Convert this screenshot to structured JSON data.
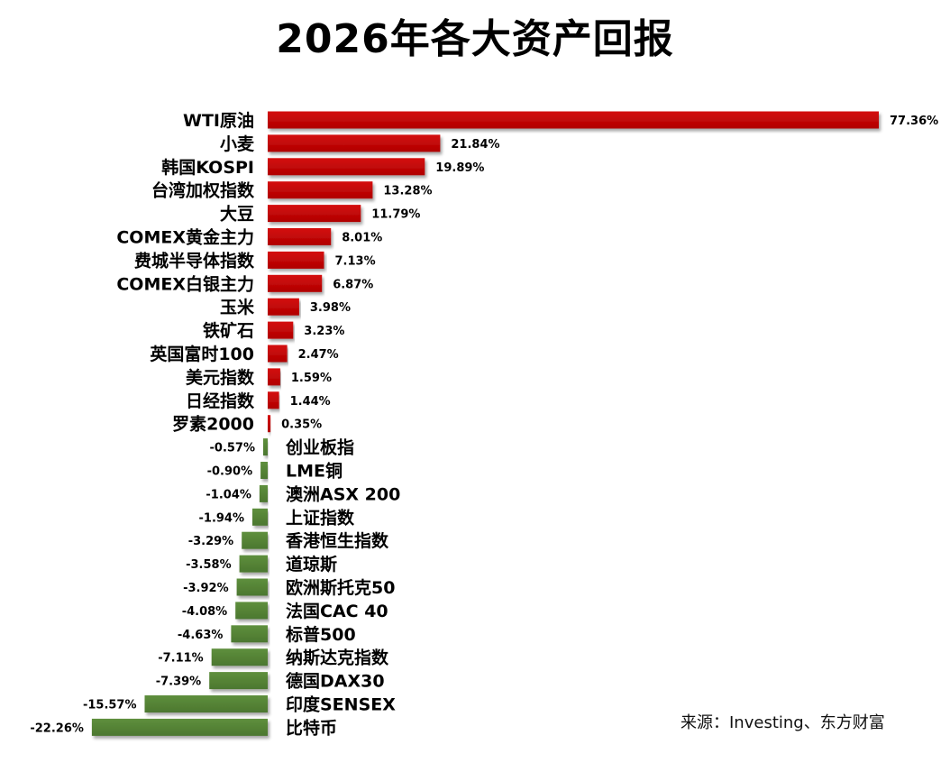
{
  "chart_data": {
    "type": "bar",
    "orientation": "horizontal",
    "title": "2026年各大资产回报",
    "value_suffix": "%",
    "categories": [
      "WTI原油",
      "小麦",
      "韩国KOSPI",
      "台湾加权指数",
      "大豆",
      "COMEX黄金主力",
      "费城半导体指数",
      "COMEX白银主力",
      "玉米",
      "铁矿石",
      "英国富时100",
      "美元指数",
      "日经指数",
      "罗素2000",
      "创业板指",
      "LME铜",
      "澳洲ASX 200",
      "上证指数",
      "香港恒生指数",
      "道琼斯",
      "欧洲斯托克50",
      "法国CAC 40",
      "标普500",
      "纳斯达克指数",
      "德国DAX30",
      "印度SENSEX",
      "比特币"
    ],
    "values": [
      77.36,
      21.84,
      19.89,
      13.28,
      11.79,
      8.01,
      7.13,
      6.87,
      3.98,
      3.23,
      2.47,
      1.59,
      1.44,
      0.35,
      -0.57,
      -0.9,
      -1.04,
      -1.94,
      -3.29,
      -3.58,
      -3.92,
      -4.08,
      -4.63,
      -7.11,
      -7.39,
      -15.57,
      -22.26
    ],
    "value_labels": [
      "77.36%",
      "21.84%",
      "19.89%",
      "13.28%",
      "11.79%",
      "8.01%",
      "7.13%",
      "6.87%",
      "3.98%",
      "3.23%",
      "2.47%",
      "1.59%",
      "1.44%",
      "0.35%",
      "-0.57%",
      "-0.90%",
      "-1.04%",
      "-1.94%",
      "-3.29%",
      "-3.58%",
      "-3.92%",
      "-4.08%",
      "-4.63%",
      "-7.11%",
      "-7.39%",
      "-15.57%",
      "-22.26%"
    ],
    "colors": {
      "positive": "#c00000",
      "negative": "#548235"
    },
    "xlim": [
      -22.26,
      77.36
    ],
    "grid": false,
    "legend": "none"
  },
  "source": "来源：Investing、东方财富"
}
